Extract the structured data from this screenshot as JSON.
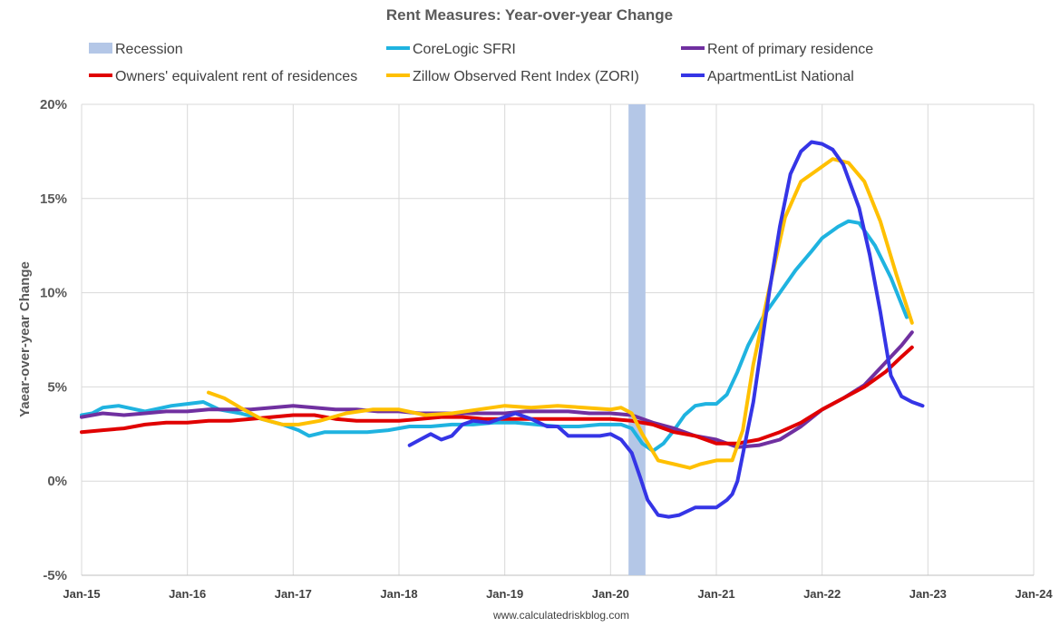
{
  "chart_data": {
    "type": "line",
    "title": "Rent Measures: Year-over-year Change",
    "ylabel": "Yaear-over-year Change",
    "source": "www.calculatedriskblog.com",
    "xlim": [
      2015.0,
      2024.0
    ],
    "ylim": [
      -5,
      20
    ],
    "y_ticks": [
      -5,
      0,
      5,
      10,
      15,
      20
    ],
    "y_tick_labels": [
      "-5%",
      "0%",
      "5%",
      "10%",
      "15%",
      "20%"
    ],
    "x_ticks": [
      2015,
      2016,
      2017,
      2018,
      2019,
      2020,
      2021,
      2022,
      2023,
      2024
    ],
    "x_tick_labels": [
      "Jan-15",
      "Jan-16",
      "Jan-17",
      "Jan-18",
      "Jan-19",
      "Jan-20",
      "Jan-21",
      "Jan-22",
      "Jan-23",
      "Jan-24"
    ],
    "grid": true,
    "legend_position": "top",
    "recession": {
      "name": "Recession",
      "start": 2020.17,
      "end": 2020.33,
      "color": "#b4c7e7"
    },
    "series": [
      {
        "name": "Recession",
        "color": "#b4c7e7",
        "legend_only": true
      },
      {
        "name": "CoreLogic SFRI",
        "color": "#1fb3e0",
        "x": [
          2015.0,
          2015.1,
          2015.2,
          2015.35,
          2015.6,
          2015.85,
          2016.0,
          2016.15,
          2016.3,
          2016.5,
          2016.7,
          2016.9,
          2017.05,
          2017.15,
          2017.3,
          2017.5,
          2017.7,
          2017.9,
          2018.1,
          2018.3,
          2018.5,
          2018.7,
          2018.9,
          2019.1,
          2019.3,
          2019.5,
          2019.7,
          2019.9,
          2020.0,
          2020.1,
          2020.2,
          2020.3,
          2020.4,
          2020.5,
          2020.6,
          2020.7,
          2020.8,
          2020.9,
          2021.0,
          2021.1,
          2021.2,
          2021.3,
          2021.45,
          2021.6,
          2021.75,
          2021.9,
          2022.0,
          2022.15,
          2022.25,
          2022.35,
          2022.5,
          2022.65,
          2022.8
        ],
        "values": [
          3.5,
          3.6,
          3.9,
          4.0,
          3.7,
          4.0,
          4.1,
          4.2,
          3.8,
          3.6,
          3.3,
          3.0,
          2.7,
          2.4,
          2.6,
          2.6,
          2.6,
          2.7,
          2.9,
          2.9,
          3.0,
          3.0,
          3.1,
          3.1,
          3.0,
          2.9,
          2.9,
          3.0,
          3.0,
          3.0,
          2.8,
          2.0,
          1.6,
          2.0,
          2.7,
          3.5,
          4.0,
          4.1,
          4.1,
          4.6,
          5.8,
          7.2,
          8.8,
          10.0,
          11.2,
          12.2,
          12.9,
          13.5,
          13.8,
          13.7,
          12.5,
          10.8,
          8.7
        ]
      },
      {
        "name": "Rent of primary residence",
        "color": "#7030a0",
        "x": [
          2015.0,
          2015.2,
          2015.4,
          2015.6,
          2015.8,
          2016.0,
          2016.2,
          2016.4,
          2016.6,
          2016.8,
          2017.0,
          2017.2,
          2017.4,
          2017.6,
          2017.8,
          2018.0,
          2018.2,
          2018.4,
          2018.6,
          2018.8,
          2019.0,
          2019.2,
          2019.4,
          2019.6,
          2019.8,
          2020.0,
          2020.2,
          2020.4,
          2020.6,
          2020.8,
          2021.0,
          2021.2,
          2021.4,
          2021.6,
          2021.8,
          2022.0,
          2022.2,
          2022.4,
          2022.6,
          2022.75,
          2022.85
        ],
        "values": [
          3.4,
          3.6,
          3.5,
          3.6,
          3.7,
          3.7,
          3.8,
          3.8,
          3.8,
          3.9,
          4.0,
          3.9,
          3.8,
          3.8,
          3.7,
          3.7,
          3.6,
          3.6,
          3.6,
          3.6,
          3.6,
          3.7,
          3.7,
          3.7,
          3.6,
          3.6,
          3.5,
          3.1,
          2.8,
          2.4,
          2.2,
          1.8,
          1.9,
          2.2,
          2.9,
          3.8,
          4.4,
          5.1,
          6.3,
          7.2,
          7.9
        ]
      },
      {
        "name": "Owners' equivalent rent of residences",
        "color": "#e00000",
        "x": [
          2015.0,
          2015.2,
          2015.4,
          2015.6,
          2015.8,
          2016.0,
          2016.2,
          2016.4,
          2016.6,
          2016.8,
          2017.0,
          2017.2,
          2017.4,
          2017.6,
          2017.8,
          2018.0,
          2018.2,
          2018.4,
          2018.6,
          2018.8,
          2019.0,
          2019.2,
          2019.4,
          2019.6,
          2019.8,
          2020.0,
          2020.2,
          2020.4,
          2020.6,
          2020.8,
          2021.0,
          2021.2,
          2021.4,
          2021.6,
          2021.8,
          2022.0,
          2022.2,
          2022.4,
          2022.6,
          2022.75,
          2022.85
        ],
        "values": [
          2.6,
          2.7,
          2.8,
          3.0,
          3.1,
          3.1,
          3.2,
          3.2,
          3.3,
          3.4,
          3.5,
          3.5,
          3.3,
          3.2,
          3.2,
          3.2,
          3.3,
          3.4,
          3.4,
          3.3,
          3.3,
          3.3,
          3.3,
          3.3,
          3.3,
          3.3,
          3.2,
          3.0,
          2.6,
          2.4,
          2.0,
          2.0,
          2.2,
          2.6,
          3.1,
          3.8,
          4.4,
          5.0,
          5.8,
          6.6,
          7.1
        ]
      },
      {
        "name": "Zillow Observed Rent Index (ZORI)",
        "color": "#ffc000",
        "x": [
          2016.2,
          2016.35,
          2016.5,
          2016.7,
          2016.9,
          2017.05,
          2017.25,
          2017.5,
          2017.75,
          2018.0,
          2018.25,
          2018.5,
          2018.75,
          2019.0,
          2019.25,
          2019.5,
          2019.75,
          2020.0,
          2020.1,
          2020.2,
          2020.3,
          2020.45,
          2020.6,
          2020.75,
          2020.85,
          2021.0,
          2021.15,
          2021.25,
          2021.35,
          2021.5,
          2021.65,
          2021.8,
          2021.95,
          2022.1,
          2022.25,
          2022.4,
          2022.55,
          2022.7,
          2022.85
        ],
        "values": [
          4.7,
          4.4,
          3.9,
          3.3,
          3.0,
          3.0,
          3.2,
          3.6,
          3.8,
          3.8,
          3.5,
          3.6,
          3.8,
          4.0,
          3.9,
          4.0,
          3.9,
          3.8,
          3.9,
          3.6,
          2.5,
          1.1,
          0.9,
          0.7,
          0.9,
          1.1,
          1.1,
          2.7,
          6.2,
          10.2,
          14.0,
          15.9,
          16.5,
          17.1,
          16.9,
          15.9,
          13.8,
          11.0,
          8.4
        ]
      },
      {
        "name": "ApartmentList National",
        "color": "#3535e6",
        "x": [
          2018.1,
          2018.2,
          2018.3,
          2018.4,
          2018.5,
          2018.6,
          2018.7,
          2018.85,
          2019.0,
          2019.1,
          2019.25,
          2019.4,
          2019.5,
          2019.6,
          2019.75,
          2019.9,
          2020.0,
          2020.1,
          2020.2,
          2020.28,
          2020.35,
          2020.45,
          2020.55,
          2020.65,
          2020.8,
          2020.9,
          2021.0,
          2021.1,
          2021.15,
          2021.2,
          2021.35,
          2021.5,
          2021.6,
          2021.7,
          2021.8,
          2021.9,
          2022.0,
          2022.1,
          2022.2,
          2022.35,
          2022.45,
          2022.55,
          2022.65,
          2022.75,
          2022.85,
          2022.95
        ],
        "values": [
          1.9,
          2.2,
          2.5,
          2.2,
          2.4,
          3.0,
          3.2,
          3.1,
          3.4,
          3.6,
          3.3,
          2.9,
          2.9,
          2.4,
          2.4,
          2.4,
          2.5,
          2.2,
          1.5,
          0.2,
          -1.0,
          -1.8,
          -1.9,
          -1.8,
          -1.4,
          -1.4,
          -1.4,
          -1.0,
          -0.7,
          0.0,
          4.2,
          10.0,
          13.5,
          16.3,
          17.5,
          18.0,
          17.9,
          17.6,
          16.8,
          14.5,
          12.0,
          9.0,
          5.6,
          4.5,
          4.2,
          4.0
        ]
      }
    ]
  }
}
